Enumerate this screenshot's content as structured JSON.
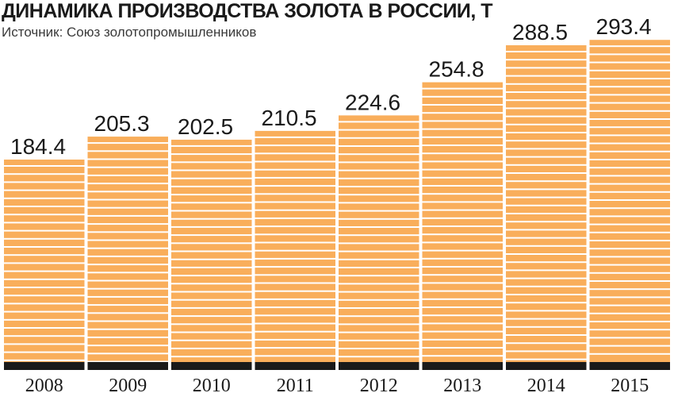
{
  "chart_data": {
    "type": "bar",
    "title": "ДИНАМИКА ПРОИЗВОДСТВА ЗОЛОТА В РОССИИ, Т",
    "subtitle": "Источник: Союз золотопромышленников",
    "categories": [
      "2008",
      "2009",
      "2010",
      "2011",
      "2012",
      "2013",
      "2014",
      "2015"
    ],
    "values": [
      184.4,
      205.3,
      202.5,
      210.5,
      224.6,
      254.8,
      288.5,
      293.4
    ],
    "value_labels": [
      "184.4",
      "205.3",
      "202.5",
      "210.5",
      "224.6",
      "254.8",
      "288.5",
      "293.4"
    ],
    "xlabel": "",
    "ylabel": "",
    "grid": false,
    "legend": "none",
    "colors": {
      "bar": "#F9AE5B",
      "stripe": "#FFFFFF",
      "baseline": "#1A1A1A",
      "text": "#1A1A1A"
    }
  }
}
